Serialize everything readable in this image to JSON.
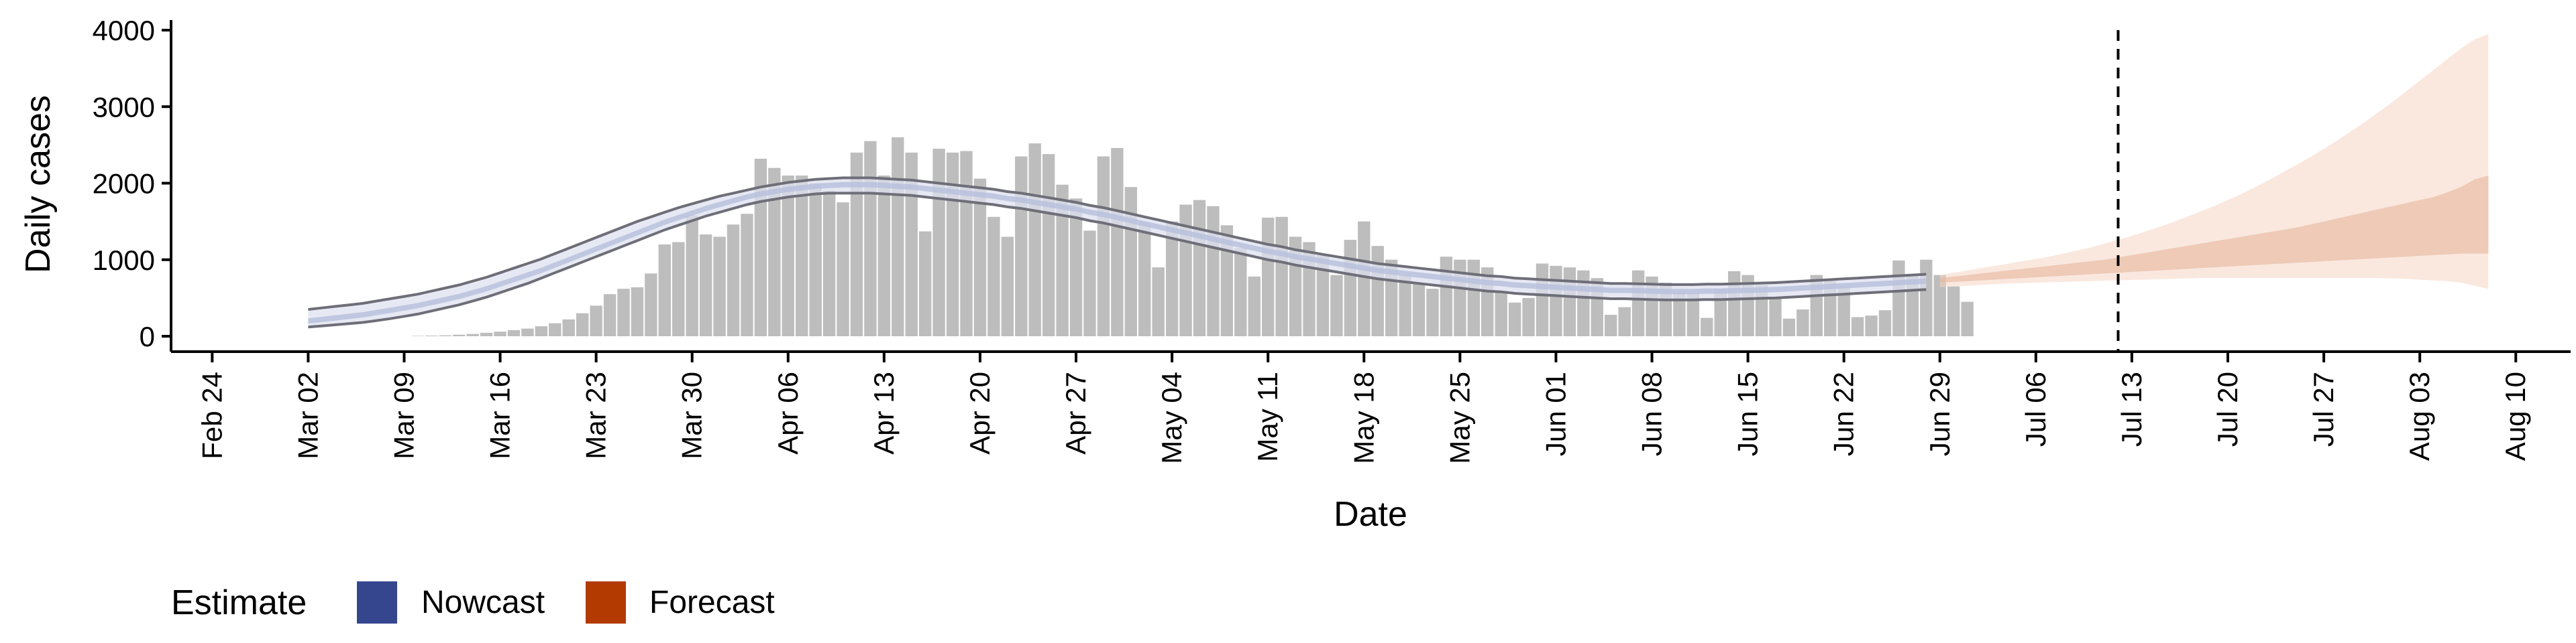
{
  "chart_data": {
    "type": "bar",
    "xlabel": "Date",
    "ylabel": "Daily cases",
    "ylim": [
      0,
      4000
    ],
    "yticks": [
      0,
      1000,
      2000,
      3000,
      4000
    ],
    "xlim": [
      "2020-02-21",
      "2020-08-14"
    ],
    "xticks": [
      "Feb 24",
      "Mar 02",
      "Mar 09",
      "Mar 16",
      "Mar 23",
      "Mar 30",
      "Apr 06",
      "Apr 13",
      "Apr 20",
      "Apr 27",
      "May 04",
      "May 11",
      "May 18",
      "May 25",
      "Jun 01",
      "Jun 08",
      "Jun 15",
      "Jun 22",
      "Jun 29",
      "Jul 06",
      "Jul 13",
      "Jul 20",
      "Jul 27",
      "Aug 03",
      "Aug 10"
    ],
    "xtick_dates": [
      "2020-02-24",
      "2020-03-02",
      "2020-03-09",
      "2020-03-16",
      "2020-03-23",
      "2020-03-30",
      "2020-04-06",
      "2020-04-13",
      "2020-04-20",
      "2020-04-27",
      "2020-05-04",
      "2020-05-11",
      "2020-05-18",
      "2020-05-25",
      "2020-06-01",
      "2020-06-08",
      "2020-06-15",
      "2020-06-22",
      "2020-06-29",
      "2020-07-06",
      "2020-07-13",
      "2020-07-20",
      "2020-07-27",
      "2020-08-03",
      "2020-08-10"
    ],
    "vline_date": "2020-07-12",
    "bars": {
      "start_date": "2020-03-10",
      "values": [
        5,
        8,
        12,
        20,
        30,
        45,
        60,
        80,
        100,
        130,
        170,
        220,
        300,
        400,
        550,
        620,
        640,
        820,
        1200,
        1230,
        1580,
        1330,
        1300,
        1460,
        1600,
        2320,
        2200,
        2100,
        2100,
        2000,
        1900,
        1750,
        2400,
        2550,
        2100,
        2600,
        2400,
        1370,
        2450,
        2400,
        2420,
        2060,
        1560,
        1300,
        2350,
        2520,
        2380,
        1980,
        1800,
        1380,
        2350,
        2460,
        1950,
        1490,
        900,
        1500,
        1720,
        1780,
        1700,
        1450,
        1150,
        780,
        1550,
        1560,
        1300,
        1230,
        1060,
        800,
        1260,
        1500,
        1180,
        1000,
        800,
        700,
        620,
        1040,
        1000,
        1000,
        900,
        580,
        440,
        500,
        950,
        920,
        900,
        860,
        760,
        280,
        380,
        860,
        780,
        700,
        580,
        560,
        240,
        620,
        850,
        800,
        670,
        500,
        230,
        350,
        800,
        720,
        650,
        250,
        270,
        340,
        990,
        780,
        1000,
        800,
        650,
        450
      ]
    },
    "series": [
      {
        "name": "Nowcast",
        "color": "#35468f",
        "start_date": "2020-03-02",
        "end_date": "2020-06-28",
        "median": [
          200,
          220,
          240,
          260,
          280,
          310,
          340,
          370,
          400,
          440,
          480,
          520,
          570,
          620,
          680,
          740,
          800,
          860,
          930,
          1000,
          1070,
          1140,
          1210,
          1280,
          1350,
          1420,
          1490,
          1550,
          1610,
          1670,
          1720,
          1770,
          1820,
          1860,
          1890,
          1920,
          1940,
          1960,
          1970,
          1980,
          1980,
          1980,
          1970,
          1960,
          1950,
          1930,
          1910,
          1890,
          1870,
          1850,
          1830,
          1800,
          1780,
          1750,
          1720,
          1690,
          1660,
          1620,
          1590,
          1550,
          1510,
          1470,
          1430,
          1390,
          1350,
          1310,
          1270,
          1230,
          1190,
          1150,
          1110,
          1080,
          1040,
          1010,
          980,
          950,
          920,
          890,
          860,
          840,
          820,
          800,
          780,
          760,
          740,
          720,
          700,
          690,
          670,
          660,
          650,
          640,
          630,
          620,
          610,
          600,
          600,
          595,
          590,
          585,
          585,
          585,
          590,
          590,
          595,
          600,
          605,
          610,
          620,
          630,
          640,
          650,
          660,
          670,
          680,
          690,
          700,
          710,
          720
        ],
        "lower90": [
          120,
          135,
          150,
          165,
          180,
          205,
          230,
          260,
          290,
          330,
          370,
          410,
          460,
          510,
          570,
          630,
          690,
          760,
          830,
          900,
          970,
          1040,
          1110,
          1180,
          1250,
          1320,
          1390,
          1450,
          1510,
          1570,
          1620,
          1670,
          1720,
          1760,
          1790,
          1820,
          1840,
          1860,
          1870,
          1870,
          1870,
          1870,
          1860,
          1850,
          1840,
          1820,
          1800,
          1780,
          1760,
          1740,
          1720,
          1690,
          1670,
          1640,
          1610,
          1580,
          1550,
          1510,
          1480,
          1440,
          1400,
          1360,
          1320,
          1280,
          1240,
          1200,
          1160,
          1120,
          1080,
          1040,
          1000,
          970,
          930,
          900,
          870,
          840,
          810,
          780,
          750,
          730,
          710,
          690,
          670,
          650,
          630,
          610,
          590,
          580,
          560,
          550,
          540,
          530,
          520,
          510,
          500,
          490,
          490,
          485,
          480,
          475,
          475,
          475,
          480,
          480,
          485,
          490,
          495,
          500,
          510,
          520,
          530,
          540,
          550,
          560,
          570,
          580,
          590,
          600,
          610
        ],
        "upper90": [
          350,
          370,
          390,
          410,
          430,
          460,
          490,
          520,
          550,
          590,
          630,
          670,
          720,
          770,
          830,
          890,
          950,
          1010,
          1080,
          1150,
          1220,
          1290,
          1360,
          1430,
          1500,
          1560,
          1620,
          1680,
          1730,
          1780,
          1830,
          1870,
          1910,
          1950,
          1980,
          2010,
          2030,
          2050,
          2060,
          2070,
          2070,
          2070,
          2060,
          2050,
          2040,
          2020,
          2000,
          1980,
          1960,
          1940,
          1920,
          1890,
          1870,
          1840,
          1810,
          1780,
          1750,
          1710,
          1680,
          1640,
          1600,
          1560,
          1520,
          1480,
          1440,
          1400,
          1360,
          1320,
          1280,
          1240,
          1200,
          1170,
          1130,
          1100,
          1070,
          1040,
          1010,
          980,
          950,
          930,
          910,
          890,
          870,
          850,
          830,
          810,
          790,
          780,
          760,
          750,
          740,
          730,
          720,
          710,
          700,
          690,
          690,
          685,
          680,
          675,
          675,
          675,
          680,
          680,
          685,
          690,
          695,
          700,
          710,
          720,
          730,
          740,
          750,
          760,
          770,
          780,
          790,
          800,
          810
        ]
      },
      {
        "name": "Forecast",
        "color": "#b33a00",
        "start_date": "2020-06-29",
        "end_date": "2020-08-08",
        "lower90": [
          640,
          650,
          660,
          670,
          680,
          690,
          695,
          700,
          705,
          710,
          715,
          720,
          725,
          730,
          735,
          740,
          745,
          750,
          755,
          760,
          760,
          760,
          760,
          760,
          760,
          760,
          760,
          760,
          760,
          760,
          760,
          760,
          760,
          755,
          750,
          740,
          730,
          720,
          700,
          660,
          620
        ],
        "lower50": [
          700,
          710,
          720,
          730,
          740,
          750,
          760,
          770,
          780,
          790,
          800,
          810,
          820,
          830,
          840,
          850,
          860,
          870,
          880,
          890,
          900,
          910,
          920,
          930,
          940,
          950,
          960,
          970,
          980,
          990,
          1000,
          1010,
          1020,
          1030,
          1040,
          1050,
          1060,
          1070,
          1080,
          1080,
          1080
        ],
        "upper50": [
          760,
          780,
          800,
          820,
          840,
          860,
          880,
          900,
          920,
          940,
          960,
          980,
          1000,
          1030,
          1060,
          1090,
          1120,
          1150,
          1180,
          1210,
          1240,
          1270,
          1300,
          1330,
          1360,
          1390,
          1420,
          1460,
          1500,
          1540,
          1580,
          1620,
          1660,
          1700,
          1740,
          1780,
          1820,
          1880,
          1950,
          2050,
          2100
        ],
        "upper90": [
          800,
          830,
          860,
          890,
          920,
          950,
          980,
          1010,
          1040,
          1080,
          1120,
          1160,
          1210,
          1260,
          1310,
          1370,
          1430,
          1490,
          1560,
          1630,
          1700,
          1780,
          1860,
          1950,
          2040,
          2140,
          2240,
          2340,
          2450,
          2560,
          2680,
          2800,
          2930,
          3060,
          3200,
          3340,
          3480,
          3620,
          3760,
          3880,
          3950
        ]
      }
    ],
    "legend": {
      "title": "Estimate",
      "placement": "bottom-left",
      "items": [
        {
          "label": "Nowcast",
          "color": "#35468f"
        },
        {
          "label": "Forecast",
          "color": "#b33a00"
        }
      ]
    }
  }
}
